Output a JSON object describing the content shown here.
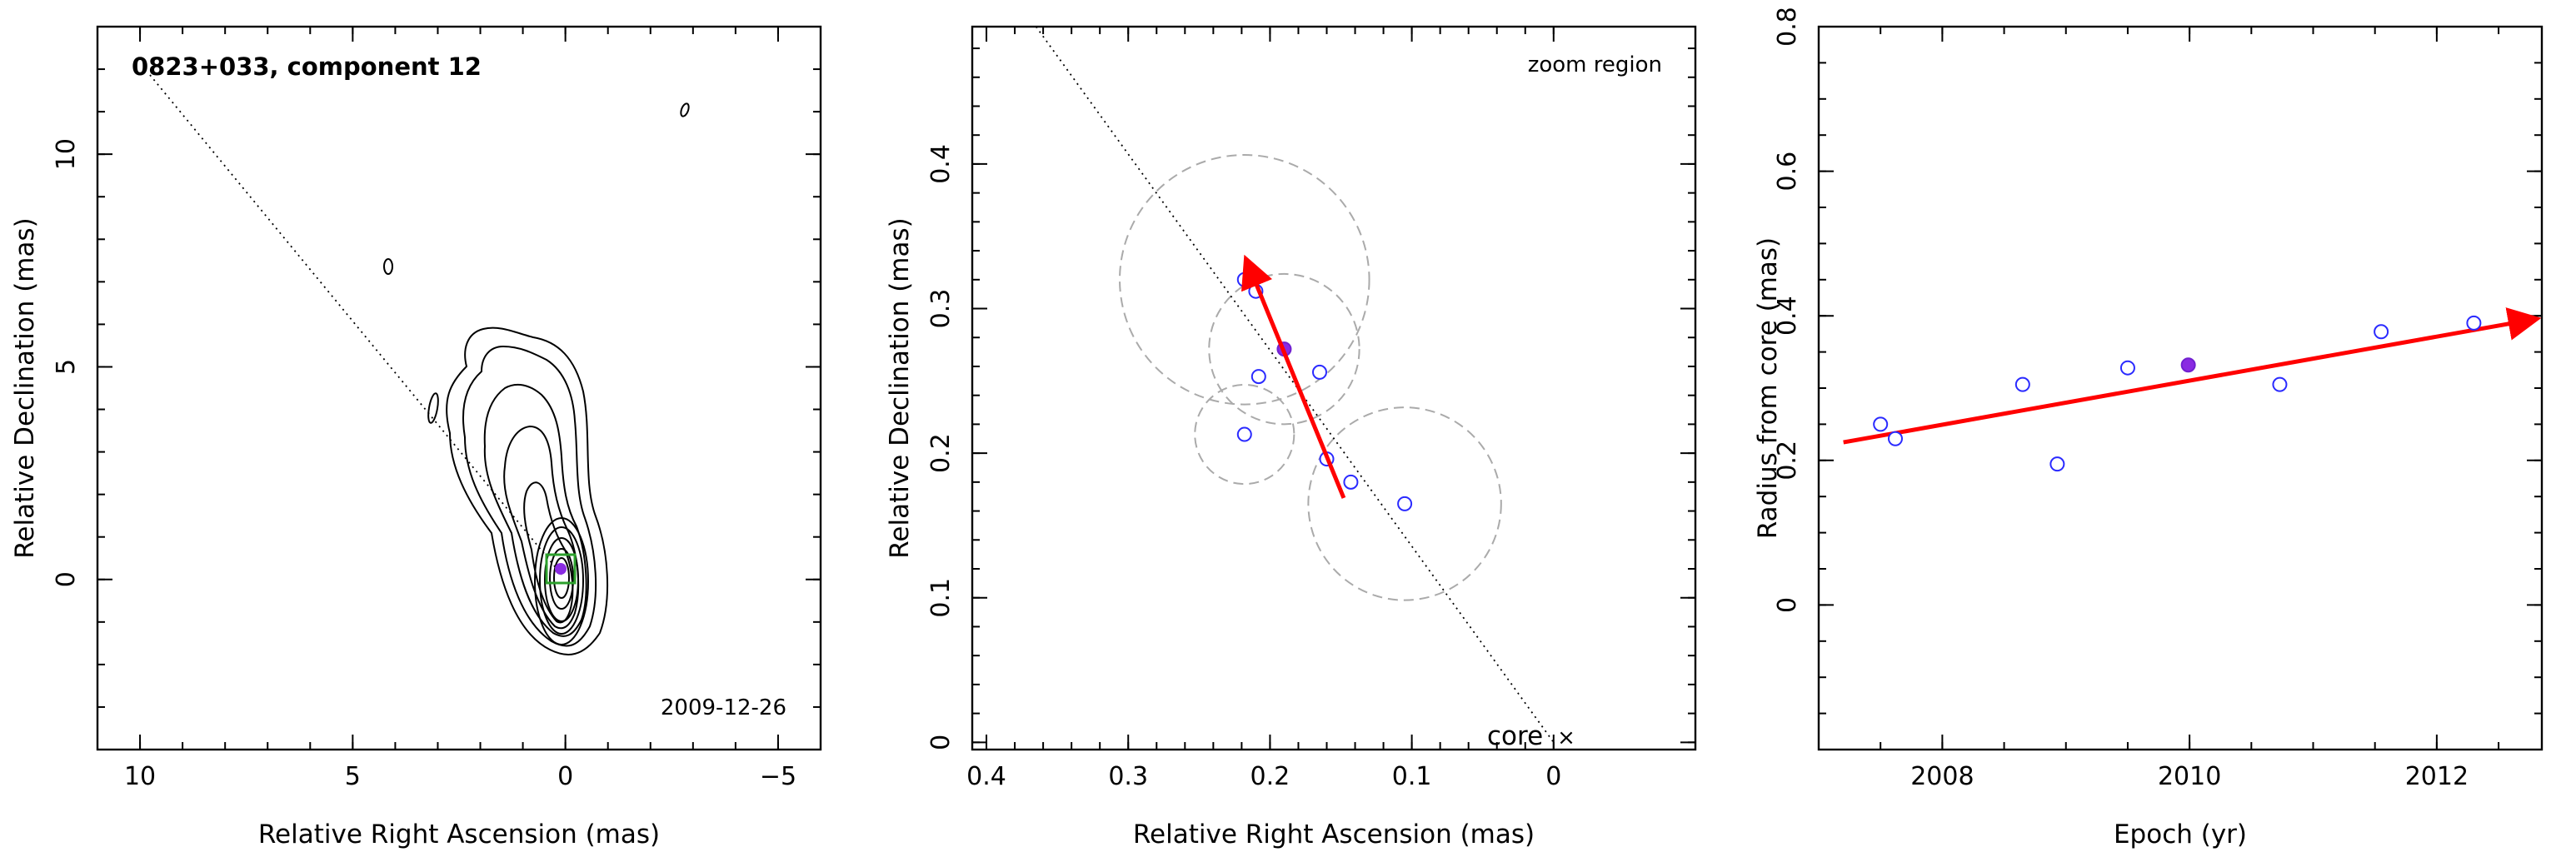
{
  "chart_data": [
    {
      "type": "scatter",
      "panel": "contour-map",
      "title": "0823+033, component 12",
      "date_label": "2009-12-26",
      "xlabel": "Relative Right Ascension (mas)",
      "ylabel": "Relative Declination (mas)",
      "xlim": [
        11,
        -6
      ],
      "ylim": [
        -4,
        13
      ],
      "xticks": [
        "10",
        "5",
        "0",
        "−5"
      ],
      "yticks": [
        "0",
        "5",
        "10"
      ],
      "component": {
        "x": 0.0,
        "y": 0.2
      },
      "box_color": "#2ca02c",
      "marker_color": "#8a2be2"
    },
    {
      "type": "scatter",
      "panel": "zoom",
      "zoom_label": "zoom region",
      "core_label": "core",
      "xlabel": "Relative Right Ascension (mas)",
      "ylabel": "Relative Declination (mas)",
      "xlim": [
        0.41,
        -0.1
      ],
      "ylim": [
        -0.005,
        0.495
      ],
      "xticks": [
        "0.4",
        "0.3",
        "0.2",
        "0.1",
        "0"
      ],
      "yticks": [
        "0",
        "0.1",
        "0.2",
        "0.3",
        "0.4"
      ],
      "points": [
        {
          "x": 0.218,
          "y": 0.32
        },
        {
          "x": 0.21,
          "y": 0.312
        },
        {
          "x": 0.208,
          "y": 0.253
        },
        {
          "x": 0.165,
          "y": 0.256
        },
        {
          "x": 0.218,
          "y": 0.213
        },
        {
          "x": 0.16,
          "y": 0.196
        },
        {
          "x": 0.143,
          "y": 0.18
        },
        {
          "x": 0.105,
          "y": 0.165
        }
      ],
      "highlight": {
        "x": 0.19,
        "y": 0.272
      },
      "error_circles": [
        {
          "x": 0.218,
          "y": 0.32,
          "r": 0.088
        },
        {
          "x": 0.19,
          "y": 0.272,
          "r": 0.053
        },
        {
          "x": 0.218,
          "y": 0.213,
          "r": 0.035
        },
        {
          "x": 0.105,
          "y": 0.165,
          "r": 0.068
        }
      ],
      "vector": {
        "from": {
          "x": 0.148,
          "y": 0.169
        },
        "to": {
          "x": 0.216,
          "y": 0.332
        }
      },
      "ridge_line": {
        "from": {
          "x": 0.365,
          "y": 0.495
        },
        "to": {
          "x": 0.0,
          "y": 0.0
        }
      },
      "colors": {
        "points": "#2a2aff",
        "highlight": "#8a2be2",
        "vector": "#ff0000",
        "circles": "#aaaaaa"
      }
    },
    {
      "type": "scatter",
      "panel": "radius-vs-epoch",
      "xlabel": "Epoch (yr)",
      "ylabel": "Radius from core (mas)",
      "xlim": [
        2007.0,
        2012.85
      ],
      "ylim": [
        -0.2,
        0.8
      ],
      "xticks": [
        "2008",
        "2010",
        "2012"
      ],
      "yticks": [
        "0",
        "0.2",
        "0.4",
        "0.6",
        "0.8"
      ],
      "points": [
        {
          "x": 2007.5,
          "y": 0.25
        },
        {
          "x": 2007.62,
          "y": 0.23
        },
        {
          "x": 2008.65,
          "y": 0.305
        },
        {
          "x": 2008.93,
          "y": 0.195
        },
        {
          "x": 2009.5,
          "y": 0.328
        },
        {
          "x": 2010.73,
          "y": 0.305
        },
        {
          "x": 2011.55,
          "y": 0.378
        },
        {
          "x": 2012.3,
          "y": 0.39
        }
      ],
      "highlight": {
        "x": 2009.99,
        "y": 0.332
      },
      "fit": {
        "from": {
          "x": 2007.2,
          "y": 0.225
        },
        "to": {
          "x": 2012.78,
          "y": 0.395
        }
      },
      "colors": {
        "points": "#2a2aff",
        "highlight": "#8a2be2",
        "fit": "#ff0000"
      }
    }
  ]
}
